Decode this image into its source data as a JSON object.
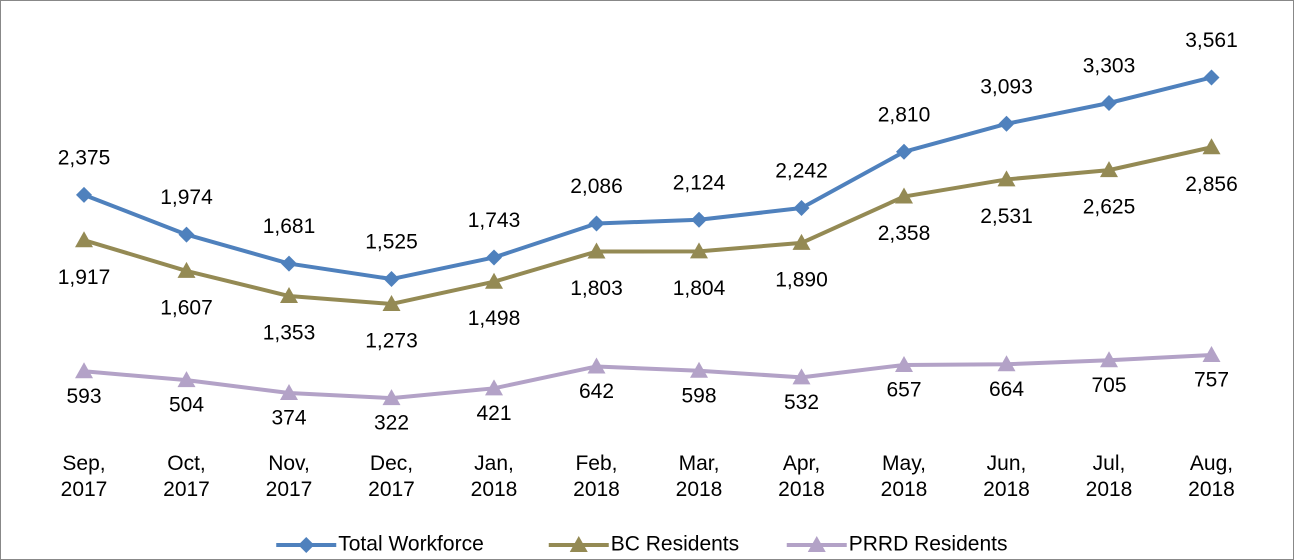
{
  "chart_data": {
    "type": "line",
    "categories": [
      "Sep, 2017",
      "Oct, 2017",
      "Nov, 2017",
      "Dec, 2017",
      "Jan, 2018",
      "Feb, 2018",
      "Mar, 2018",
      "Apr, 2018",
      "May, 2018",
      "Jun, 2018",
      "Jul, 2018",
      "Aug, 2018"
    ],
    "series": [
      {
        "name": "Total Workforce",
        "color": "#4f81bd",
        "marker": "diamond",
        "values": [
          2375,
          1974,
          1681,
          1525,
          1743,
          2086,
          2124,
          2242,
          2810,
          3093,
          3303,
          3561
        ],
        "value_labels": [
          "2,375",
          "1,974",
          "1,681",
          "1,525",
          "1,743",
          "2,086",
          "2,124",
          "2,242",
          "2,810",
          "3,093",
          "3,303",
          "3,561"
        ]
      },
      {
        "name": "BC Residents",
        "color": "#948a54",
        "marker": "triangle",
        "values": [
          1917,
          1607,
          1353,
          1273,
          1498,
          1803,
          1804,
          1890,
          2358,
          2531,
          2625,
          2856
        ],
        "value_labels": [
          "1,917",
          "1,607",
          "1,353",
          "1,273",
          "1,498",
          "1,803",
          "1,804",
          "1,890",
          "2,358",
          "2,531",
          "2,625",
          "2,856"
        ]
      },
      {
        "name": "PRRD Residents",
        "color": "#b3a2c7",
        "marker": "triangle",
        "values": [
          593,
          504,
          374,
          322,
          421,
          642,
          598,
          532,
          657,
          664,
          705,
          757
        ]
      }
    ],
    "ylim": [
      0,
      4000
    ],
    "legend": "bottom"
  }
}
